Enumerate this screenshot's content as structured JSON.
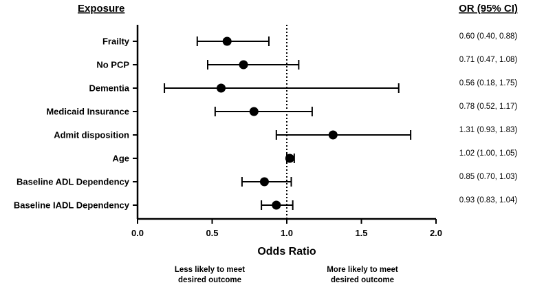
{
  "chart_data": {
    "type": "forest",
    "header_left": "Exposure",
    "header_right": "OR (95% CI)",
    "xlabel": "Odds Ratio",
    "xlim": [
      0.0,
      2.0
    ],
    "xticks": [
      "0.0",
      "0.5",
      "1.0",
      "1.5",
      "2.0"
    ],
    "reference_line": 1.0,
    "direction_left": [
      "Less likely to meet",
      "desired outcome"
    ],
    "direction_right": [
      "More likely to meet",
      "desired outcome"
    ],
    "rows": [
      {
        "label": "Frailty",
        "or": 0.6,
        "lo": 0.4,
        "hi": 0.88,
        "text": "0.60 (0.40, 0.88)"
      },
      {
        "label": "No PCP",
        "or": 0.71,
        "lo": 0.47,
        "hi": 1.08,
        "text": "0.71 (0.47, 1.08)"
      },
      {
        "label": "Dementia",
        "or": 0.56,
        "lo": 0.18,
        "hi": 1.75,
        "text": "0.56 (0.18, 1.75)"
      },
      {
        "label": "Medicaid Insurance",
        "or": 0.78,
        "lo": 0.52,
        "hi": 1.17,
        "text": "0.78 (0.52, 1.17)"
      },
      {
        "label": "Admit disposition",
        "or": 1.31,
        "lo": 0.93,
        "hi": 1.83,
        "text": "1.31 (0.93, 1.83)"
      },
      {
        "label": "Age",
        "or": 1.02,
        "lo": 1.0,
        "hi": 1.05,
        "text": "1.02 (1.00, 1.05)"
      },
      {
        "label": "Baseline ADL Dependency",
        "or": 0.85,
        "lo": 0.7,
        "hi": 1.03,
        "text": "0.85 (0.70, 1.03)"
      },
      {
        "label": "Baseline IADL Dependency",
        "or": 0.93,
        "lo": 0.83,
        "hi": 1.04,
        "text": "0.93 (0.83, 1.04)"
      }
    ]
  }
}
